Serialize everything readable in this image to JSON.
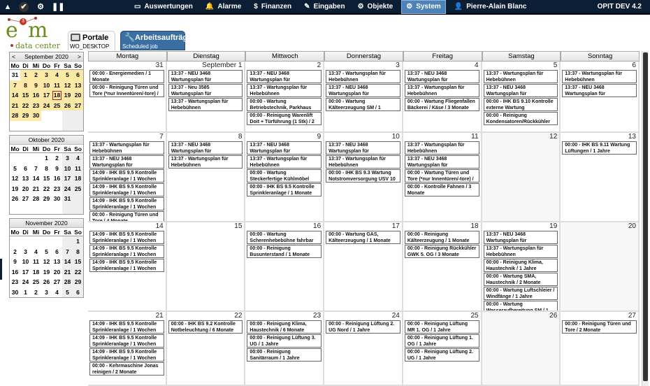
{
  "topbar": {
    "icons": [
      "warning-icon",
      "check-icon",
      "settings-icon",
      "pause-icon"
    ],
    "nav": [
      {
        "label": "Auswertungen",
        "icon": "monitor-icon",
        "glyph": "▭"
      },
      {
        "label": "Alarme",
        "icon": "bell-icon",
        "glyph": "🔔"
      },
      {
        "label": "Finanzen",
        "icon": "dollar-icon",
        "glyph": "$"
      },
      {
        "label": "Eingaben",
        "icon": "pencil-icon",
        "glyph": "✎"
      },
      {
        "label": "Objekte",
        "icon": "gear-icon",
        "glyph": "⚙"
      },
      {
        "label": "System",
        "icon": "settings-icon",
        "glyph": "⚙",
        "active": true
      },
      {
        "label": "Pierre-Alain Blanc",
        "icon": "user-icon",
        "glyph": "👤"
      }
    ],
    "version": "OPIT DEV 4.2",
    "colors": {
      "bar": "#0c1e33",
      "active": "#4d82b8"
    }
  },
  "logo": {
    "text": "e3m data center"
  },
  "tabs": [
    {
      "title": "Portale",
      "subtitle": "WO_DESKTOP"
    },
    {
      "title": "Arbeitsaufträge",
      "subtitle": "Scheduled job",
      "active": true
    }
  ],
  "mini_calendar": {
    "day_names": [
      "Mo",
      "Di",
      "Mi",
      "Do",
      "Fr",
      "Sa",
      "So"
    ],
    "prev": "<",
    "next": ">",
    "selected": {
      "month": 0,
      "day": "18"
    },
    "months": [
      {
        "title": "September 2020",
        "nav": true,
        "highlight": true,
        "rows": [
          [
            "31",
            "1",
            "2",
            "3",
            "4",
            "5",
            "6"
          ],
          [
            "7",
            "8",
            "9",
            "10",
            "11",
            "12",
            "13"
          ],
          [
            "14",
            "15",
            "16",
            "17",
            "18",
            "19",
            "20"
          ],
          [
            "21",
            "22",
            "23",
            "24",
            "25",
            "26",
            "27"
          ],
          [
            "28",
            "29",
            "30",
            "",
            "",
            "",
            ""
          ],
          [
            "",
            "",
            "",
            "",
            "",
            "",
            ""
          ]
        ]
      },
      {
        "title": "Oktober 2020",
        "rows": [
          [
            "",
            "",
            "",
            "1",
            "2",
            "3",
            "4"
          ],
          [
            "5",
            "6",
            "7",
            "8",
            "9",
            "10",
            "11"
          ],
          [
            "12",
            "13",
            "14",
            "15",
            "16",
            "17",
            "18"
          ],
          [
            "19",
            "20",
            "21",
            "22",
            "23",
            "24",
            "25"
          ],
          [
            "26",
            "27",
            "28",
            "29",
            "30",
            "31",
            ""
          ],
          [
            "",
            "",
            "",
            "",
            "",
            "",
            ""
          ]
        ]
      },
      {
        "title": "November 2020",
        "rows": [
          [
            "",
            "",
            "",
            "",
            "",
            "",
            "1"
          ],
          [
            "2",
            "3",
            "4",
            "5",
            "6",
            "7",
            "8"
          ],
          [
            "9",
            "10",
            "11",
            "12",
            "13",
            "14",
            "15"
          ],
          [
            "16",
            "17",
            "18",
            "19",
            "20",
            "21",
            "22"
          ],
          [
            "23",
            "24",
            "25",
            "26",
            "27",
            "28",
            "29"
          ],
          [
            "30",
            "1",
            "2",
            "3",
            "4",
            "5",
            "6"
          ]
        ]
      }
    ]
  },
  "calendar": {
    "weekdays": [
      "Montag",
      "Dienstag",
      "Mittwoch",
      "Donnerstag",
      "Freitag",
      "Samstag",
      "Sonntag"
    ],
    "weeks": [
      [
        {
          "num": "31",
          "events": [
            "00:00 - Energiemedien / 1 Monate",
            "00:00 - Reinigung Türen und Tore (*nur Innentüren/-tore) / 2"
          ]
        },
        {
          "num": "September 1",
          "events": [
            "13:37 - NEU 3468 Wartungsplan für Steckerfertige Kühlmöbel",
            "13:37 - Neu 3585 Wartungsplan für Steckerfertige Kühlmöbel",
            "13:37 - Wartungsplan für Hebebühnen"
          ]
        },
        {
          "num": "2",
          "events": [
            "13:37 - NEU 3468 Wartungsplan für Steckerfertige Kühlmöbel",
            "13:37 - Wartungsplan für Hebebühnen",
            "00:00 - Wartung Betriebstechnik, Parkhaus",
            "00:00 - Reinigung Warenlift Doit + Türführung (1 Stk) / 2 Monate"
          ]
        },
        {
          "num": "3",
          "events": [
            "13:37 - Wartungsplan für Hebebühnen",
            "13:37 - NEU 3468 Wartungsplan für Steckerfertige Kühlmöbel",
            "00:00 - Wartung Kälteerzeugung SM / 1 Monate"
          ]
        },
        {
          "num": "4",
          "events": [
            "13:37 - NEU 3468 Wartungsplan für Steckerfertige Kühlmöbel",
            "13:37 - Wartungsplan für Hebebühnen",
            "00:00 - Wartung Fliegenfallen Bäckerei / Käse / 3 Monate"
          ]
        },
        {
          "num": "5",
          "events": [
            "13:37 - Wartungsplan für Hebebühnen",
            "13:37 - NEU 3468 Wartungsplan für Steckerfertige Kühlmöbel",
            "00:00 - IHK BS 9.10 Kontrolle externe Wartung",
            "00:00 - Reinigung Kondensatoren/Rückkühler"
          ]
        },
        {
          "num": "6",
          "events": [
            "13:37 - Wartungsplan für Hebebühnen",
            "13:37 - NEU 3468 Wartungsplan für Steckerfertige Kühlmöbel"
          ]
        }
      ],
      [
        {
          "num": "7",
          "events": [
            "13:37 - Wartungsplan für Hebebühnen",
            "13:37 - NEU 3468 Wartungsplan für Steckerfertige Kühlmöbel",
            "14:09 - IHK BS 9.5 Kontrolle Sprinkleranlage / 1 Wochen",
            "14:09 - IHK BS 9.5 Kontrolle Sprinkleranlage / 1 Wochen",
            "14:09 - IHK BS 9.5 Kontrolle Sprinkleranlage / 1 Wochen",
            "00:00 - Reinigung Türen und Tore / 4 Monate"
          ]
        },
        {
          "num": "8",
          "events": [
            "13:37 - NEU 3468 Wartungsplan für Steckerfertige Kühlmöbel",
            "13:37 - Wartungsplan für Hebebühnen"
          ]
        },
        {
          "num": "9",
          "events": [
            "13:37 - NEU 3468 Wartungsplan für Steckerfertige Kühlmöbel",
            "13:37 - Wartungsplan für Hebebühnen",
            "00:00 - Wartung Steckerfertige Kühlmöbel GAS / 1 Jahre",
            "00:00 - IHK BS 9.5 Kontrolle Sprinkleranlage / 1 Monate"
          ]
        },
        {
          "num": "10",
          "events": [
            "13:37 - NEU 3468 Wartungsplan für Steckerfertige Kühlmöbel",
            "13:37 - Wartungsplan für Hebebühnen",
            "00:00 - IHK BS 9.3 Wartung Notstromversorgung USV 10"
          ]
        },
        {
          "num": "11",
          "events": [
            "13:37 - Wartungsplan für Hebebühnen",
            "13:37 - NEU 3468 Wartungsplan für Steckerfertige Kühlmöbel",
            "00:00 - Wartung Türen und Tore (*nur Innentüren/-tore) / 6",
            "00:00 - Kontrolle Fahnen / 3 Monate"
          ]
        },
        {
          "num": "12",
          "events": []
        },
        {
          "num": "13",
          "events": [
            "00:00 - IHK BS 9.11 Wartung Lüftungen / 1 Jahre"
          ]
        }
      ],
      [
        {
          "num": "14",
          "events": [
            "14:09 - IHK BS 9.5 Kontrolle Sprinkleranlage / 1 Wochen",
            "14:09 - IHK BS 9.5 Kontrolle Sprinkleranlage / 1 Wochen",
            "14:09 - IHK BS 9.5 Kontrolle Sprinkleranlage / 1 Wochen"
          ]
        },
        {
          "num": "15",
          "events": []
        },
        {
          "num": "16",
          "events": [
            "00:00 - Wartung Scherenhebebühne fahrbar",
            "00:00 - Reinigung Busunterstand / 1 Monate"
          ]
        },
        {
          "num": "17",
          "events": [
            "00:00 - Wartung GAS, Kälteerzeugung / 1 Monate"
          ]
        },
        {
          "num": "18",
          "events": [
            "00:00 - Reinigung Kälteerzeugung / 1 Monate",
            "00:00 - Reinigung Rückkühler GWK 5. OG / 3 Monate"
          ]
        },
        {
          "num": "19",
          "events": [
            "13:37 - NEU 3468 Wartungsplan für Steckerfertige Kühlmöbel",
            "13:37 - Wartungsplan für Hebebühnen",
            "00:00 - Reinigung Klima, Haustechnik / 1 Jahre",
            "00:00 - Wartung SMA, Haustechnik / 2 Monate",
            "00:00 - Wartung Luftschleier / Windfänge / 1 Jahre",
            "00:00 - Wartung Wasseraufbereitung SM / 1"
          ]
        },
        {
          "num": "20",
          "events": []
        }
      ],
      [
        {
          "num": "21",
          "events": [
            "14:09 - IHK BS 9.5 Kontrolle Sprinkleranlage / 1 Wochen",
            "14:09 - IHK BS 9.5 Kontrolle Sprinkleranlage / 1 Wochen",
            "14:09 - IHK BS 9.5 Kontrolle Sprinkleranlage / 1 Wochen",
            "00:00 - Kehrmaschine Jonas reinigen / 2 Monate"
          ]
        },
        {
          "num": "22",
          "events": [
            "00:00 - IHK BS 9.2 Kontrolle Notbeleuchtung / 6 Monate"
          ]
        },
        {
          "num": "23",
          "events": [
            "00:00 - Reinigung Klima, Haustechnik / 6 Monate",
            "00:00 - Reinigung Lüftung 3. UG / 1 Jahre",
            "00:00 - Reinigung Sanitärraum / 1 Jahre"
          ]
        },
        {
          "num": "24",
          "events": [
            "00:00 - Reinigung Lüftung 2. UG Nord / 1 Jahre"
          ]
        },
        {
          "num": "25",
          "events": [
            "00:00 - Reinigung Lüftung MR 1. OG / 1 Jahre",
            "00:00 - Reinigung Lüftung 1. OG / 1 Jahre",
            "00:00 - Reinigung Lüftung 2. UG / 1 Jahre"
          ]
        },
        {
          "num": "26",
          "events": []
        },
        {
          "num": "27",
          "events": [
            "00:00 - Reinigung Türen und Tore / 2 Monate"
          ]
        }
      ]
    ]
  }
}
